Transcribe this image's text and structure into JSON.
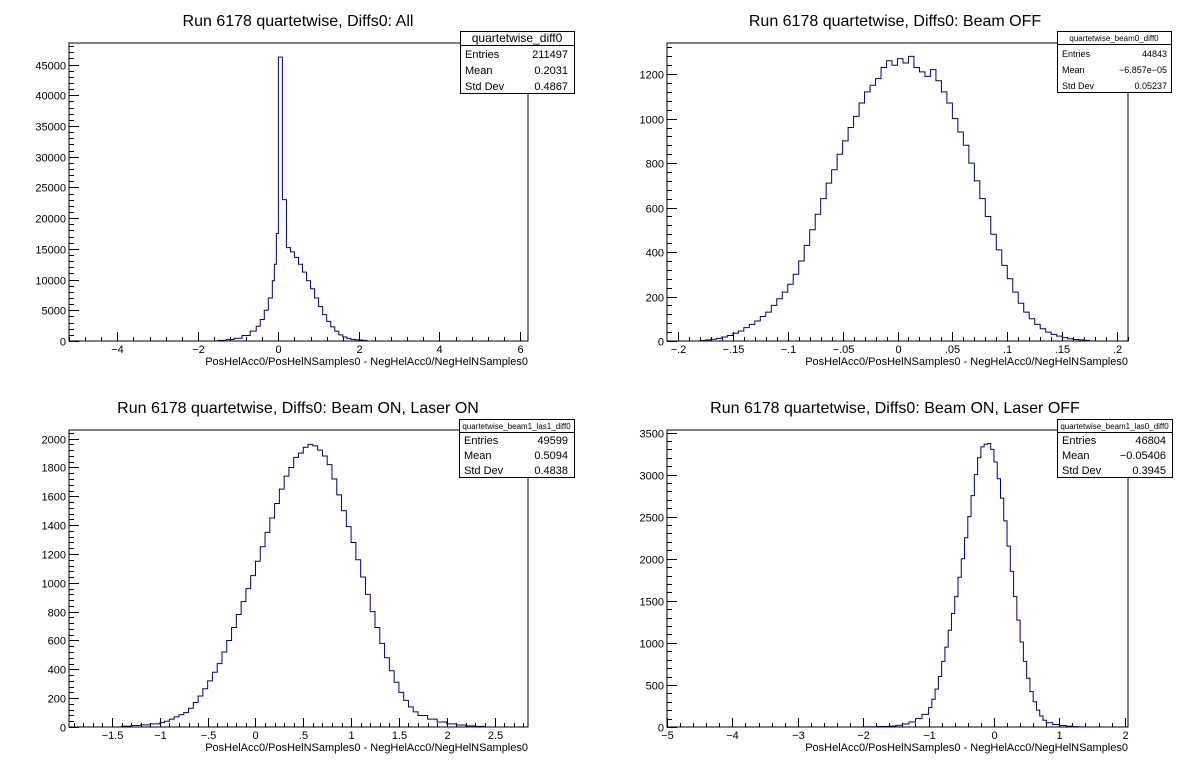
{
  "chart_data": [
    {
      "type": "histogram",
      "title": "Run 6178 quartetwise, Diffs0: All",
      "xlabel": "PosHelAcc0/PosHelNSamples0 - NegHelAcc0/NegHelNSamples0",
      "xlim": [
        -5.2,
        6.2
      ],
      "ylim": [
        0,
        48500
      ],
      "xticks": [
        -4,
        -2,
        0,
        2,
        4,
        6
      ],
      "yticks": [
        0,
        5000,
        10000,
        15000,
        20000,
        25000,
        30000,
        35000,
        40000,
        45000
      ],
      "stats": {
        "name": "quartetwise_diff0",
        "rows": [
          {
            "label": "Entries",
            "value": "211497"
          },
          {
            "label": "Mean",
            "value": "0.2031"
          },
          {
            "label": "Std Dev",
            "value": "0.4867"
          }
        ]
      },
      "bins": [
        [
          -1.5,
          100
        ],
        [
          -1.3,
          250
        ],
        [
          -1.1,
          450
        ],
        [
          -0.9,
          900
        ],
        [
          -0.7,
          1600
        ],
        [
          -0.55,
          2400
        ],
        [
          -0.45,
          3500
        ],
        [
          -0.35,
          5000
        ],
        [
          -0.25,
          7000
        ],
        [
          -0.15,
          9800
        ],
        [
          -0.1,
          12500
        ],
        [
          -0.05,
          17500
        ],
        [
          0.0,
          46200
        ],
        [
          0.1,
          23000
        ],
        [
          0.2,
          15200
        ],
        [
          0.3,
          14500
        ],
        [
          0.4,
          13600
        ],
        [
          0.5,
          12500
        ],
        [
          0.6,
          11200
        ],
        [
          0.7,
          9800
        ],
        [
          0.8,
          8500
        ],
        [
          0.9,
          7000
        ],
        [
          1.0,
          5600
        ],
        [
          1.1,
          4300
        ],
        [
          1.2,
          3200
        ],
        [
          1.3,
          2300
        ],
        [
          1.4,
          1600
        ],
        [
          1.5,
          1000
        ],
        [
          1.6,
          650
        ],
        [
          1.7,
          420
        ],
        [
          1.8,
          260
        ],
        [
          1.9,
          200
        ],
        [
          2.0,
          170
        ],
        [
          2.1,
          100
        ]
      ]
    },
    {
      "type": "histogram",
      "title": "Run 6178 quartetwise, Diffs0: Beam OFF",
      "xlabel": "PosHelAcc0/PosHelNSamples0 - NegHelAcc0/NegHelNSamples0",
      "xlim": [
        -0.21,
        0.21
      ],
      "ylim": [
        0,
        1340
      ],
      "xticks": [
        -0.2,
        -0.15,
        -0.1,
        -0.05,
        0,
        0.05,
        0.1,
        0.15,
        0.2
      ],
      "yticks": [
        0,
        200,
        400,
        600,
        800,
        1000,
        1200
      ],
      "stats": {
        "name": "quartetwise_beam0_diff0",
        "rows": [
          {
            "label": "Entries",
            "value": "44843"
          },
          {
            "label": "Mean",
            "value": "−6.857e−05"
          },
          {
            "label": "Std Dev",
            "value": "0.05237"
          }
        ]
      },
      "bins": [
        [
          -0.18,
          2
        ],
        [
          -0.175,
          5
        ],
        [
          -0.17,
          8
        ],
        [
          -0.165,
          12
        ],
        [
          -0.16,
          18
        ],
        [
          -0.155,
          25
        ],
        [
          -0.15,
          35
        ],
        [
          -0.145,
          45
        ],
        [
          -0.14,
          60
        ],
        [
          -0.135,
          75
        ],
        [
          -0.13,
          90
        ],
        [
          -0.125,
          110
        ],
        [
          -0.12,
          130
        ],
        [
          -0.115,
          160
        ],
        [
          -0.11,
          190
        ],
        [
          -0.105,
          220
        ],
        [
          -0.1,
          255
        ],
        [
          -0.095,
          300
        ],
        [
          -0.09,
          360
        ],
        [
          -0.085,
          430
        ],
        [
          -0.08,
          500
        ],
        [
          -0.075,
          570
        ],
        [
          -0.07,
          640
        ],
        [
          -0.065,
          710
        ],
        [
          -0.06,
          770
        ],
        [
          -0.055,
          840
        ],
        [
          -0.05,
          900
        ],
        [
          -0.045,
          960
        ],
        [
          -0.04,
          1010
        ],
        [
          -0.035,
          1070
        ],
        [
          -0.03,
          1120
        ],
        [
          -0.025,
          1150
        ],
        [
          -0.02,
          1180
        ],
        [
          -0.015,
          1230
        ],
        [
          -0.01,
          1260
        ],
        [
          -0.005,
          1240
        ],
        [
          0.0,
          1270
        ],
        [
          0.005,
          1250
        ],
        [
          0.01,
          1280
        ],
        [
          0.015,
          1230
        ],
        [
          0.02,
          1210
        ],
        [
          0.025,
          1190
        ],
        [
          0.03,
          1220
        ],
        [
          0.035,
          1170
        ],
        [
          0.04,
          1120
        ],
        [
          0.045,
          1070
        ],
        [
          0.05,
          1000
        ],
        [
          0.055,
          940
        ],
        [
          0.06,
          880
        ],
        [
          0.065,
          800
        ],
        [
          0.07,
          720
        ],
        [
          0.075,
          640
        ],
        [
          0.08,
          560
        ],
        [
          0.085,
          480
        ],
        [
          0.09,
          410
        ],
        [
          0.095,
          340
        ],
        [
          0.1,
          280
        ],
        [
          0.105,
          220
        ],
        [
          0.11,
          170
        ],
        [
          0.115,
          130
        ],
        [
          0.12,
          100
        ],
        [
          0.125,
          75
        ],
        [
          0.13,
          55
        ],
        [
          0.135,
          40
        ],
        [
          0.14,
          30
        ],
        [
          0.145,
          22
        ],
        [
          0.15,
          15
        ],
        [
          0.155,
          10
        ],
        [
          0.16,
          7
        ],
        [
          0.165,
          5
        ],
        [
          0.17,
          3
        ]
      ]
    },
    {
      "type": "histogram",
      "title": "Run 6178 quartetwise, Diffs0: Beam ON, Laser ON",
      "xlabel": "PosHelAcc0/PosHelNSamples0 - NegHelAcc0/NegHelNSamples0",
      "xlim": [
        -1.95,
        2.85
      ],
      "ylim": [
        0,
        2060
      ],
      "xticks": [
        -1.5,
        -1,
        -0.5,
        0,
        0.5,
        1,
        1.5,
        2,
        2.5
      ],
      "yticks": [
        0,
        200,
        400,
        600,
        800,
        1000,
        1200,
        1400,
        1600,
        1800,
        2000
      ],
      "stats": {
        "name": "quartetwise_beam1_las1_diff0",
        "rows": [
          {
            "label": "Entries",
            "value": "49599"
          },
          {
            "label": "Mean",
            "value": "0.5094"
          },
          {
            "label": "Std Dev",
            "value": "0.4838"
          }
        ]
      },
      "bins": [
        [
          -1.4,
          5
        ],
        [
          -1.3,
          10
        ],
        [
          -1.2,
          15
        ],
        [
          -1.1,
          22
        ],
        [
          -1.0,
          30
        ],
        [
          -0.95,
          40
        ],
        [
          -0.9,
          55
        ],
        [
          -0.85,
          70
        ],
        [
          -0.8,
          85
        ],
        [
          -0.75,
          100
        ],
        [
          -0.7,
          130
        ],
        [
          -0.65,
          170
        ],
        [
          -0.6,
          215
        ],
        [
          -0.55,
          265
        ],
        [
          -0.5,
          320
        ],
        [
          -0.45,
          380
        ],
        [
          -0.4,
          440
        ],
        [
          -0.35,
          520
        ],
        [
          -0.3,
          600
        ],
        [
          -0.25,
          690
        ],
        [
          -0.2,
          780
        ],
        [
          -0.15,
          870
        ],
        [
          -0.1,
          960
        ],
        [
          -0.05,
          1050
        ],
        [
          0.0,
          1150
        ],
        [
          0.05,
          1250
        ],
        [
          0.1,
          1350
        ],
        [
          0.15,
          1450
        ],
        [
          0.2,
          1550
        ],
        [
          0.25,
          1650
        ],
        [
          0.3,
          1740
        ],
        [
          0.35,
          1800
        ],
        [
          0.4,
          1870
        ],
        [
          0.45,
          1900
        ],
        [
          0.5,
          1940
        ],
        [
          0.55,
          1960
        ],
        [
          0.6,
          1950
        ],
        [
          0.65,
          1920
        ],
        [
          0.7,
          1880
        ],
        [
          0.75,
          1820
        ],
        [
          0.8,
          1720
        ],
        [
          0.85,
          1610
        ],
        [
          0.9,
          1500
        ],
        [
          0.95,
          1390
        ],
        [
          1.0,
          1280
        ],
        [
          1.05,
          1160
        ],
        [
          1.1,
          1040
        ],
        [
          1.15,
          920
        ],
        [
          1.2,
          800
        ],
        [
          1.25,
          690
        ],
        [
          1.3,
          580
        ],
        [
          1.35,
          480
        ],
        [
          1.4,
          390
        ],
        [
          1.45,
          310
        ],
        [
          1.5,
          240
        ],
        [
          1.55,
          185
        ],
        [
          1.6,
          140
        ],
        [
          1.65,
          105
        ],
        [
          1.7,
          80
        ],
        [
          1.8,
          55
        ],
        [
          1.9,
          35
        ],
        [
          2.0,
          22
        ],
        [
          2.1,
          14
        ],
        [
          2.2,
          8
        ],
        [
          2.3,
          4
        ]
      ]
    },
    {
      "type": "histogram",
      "title": "Run 6178 quartetwise, Diffs0: Beam ON, Laser OFF",
      "xlabel": "PosHelAcc0/PosHelNSamples0 - NegHelAcc0/NegHelNSamples0",
      "xlim": [
        -5.0,
        2.05
      ],
      "ylim": [
        0,
        3530
      ],
      "xticks": [
        -5,
        -4,
        -3,
        -2,
        -1,
        0,
        1,
        2
      ],
      "yticks": [
        0,
        500,
        1000,
        1500,
        2000,
        2500,
        3000,
        3500
      ],
      "stats": {
        "name": "quartetwise_beam1_las0_diff0",
        "rows": [
          {
            "label": "Entries",
            "value": "46804"
          },
          {
            "label": "Mean",
            "value": "−0.05406"
          },
          {
            "label": "Std Dev",
            "value": "0.3945"
          }
        ]
      },
      "bins": [
        [
          -2.0,
          3
        ],
        [
          -1.8,
          6
        ],
        [
          -1.6,
          10
        ],
        [
          -1.5,
          20
        ],
        [
          -1.4,
          35
        ],
        [
          -1.3,
          60
        ],
        [
          -1.2,
          100
        ],
        [
          -1.1,
          150
        ],
        [
          -1.0,
          230
        ],
        [
          -0.95,
          330
        ],
        [
          -0.9,
          450
        ],
        [
          -0.85,
          600
        ],
        [
          -0.8,
          780
        ],
        [
          -0.75,
          950
        ],
        [
          -0.7,
          1150
        ],
        [
          -0.65,
          1350
        ],
        [
          -0.6,
          1550
        ],
        [
          -0.55,
          1780
        ],
        [
          -0.5,
          2000
        ],
        [
          -0.45,
          2250
        ],
        [
          -0.4,
          2500
        ],
        [
          -0.35,
          2750
        ],
        [
          -0.3,
          3000
        ],
        [
          -0.25,
          3200
        ],
        [
          -0.2,
          3330
        ],
        [
          -0.15,
          3360
        ],
        [
          -0.1,
          3370
        ],
        [
          -0.05,
          3300
        ],
        [
          0.0,
          3150
        ],
        [
          0.05,
          2950
        ],
        [
          0.1,
          2720
        ],
        [
          0.15,
          2450
        ],
        [
          0.2,
          2150
        ],
        [
          0.25,
          1850
        ],
        [
          0.3,
          1550
        ],
        [
          0.35,
          1270
        ],
        [
          0.4,
          1010
        ],
        [
          0.45,
          780
        ],
        [
          0.5,
          580
        ],
        [
          0.55,
          420
        ],
        [
          0.6,
          300
        ],
        [
          0.65,
          200
        ],
        [
          0.7,
          130
        ],
        [
          0.75,
          80
        ],
        [
          0.8,
          50
        ],
        [
          0.9,
          30
        ],
        [
          1.0,
          18
        ],
        [
          1.1,
          10
        ],
        [
          1.2,
          5
        ],
        [
          1.3,
          2
        ]
      ]
    }
  ]
}
